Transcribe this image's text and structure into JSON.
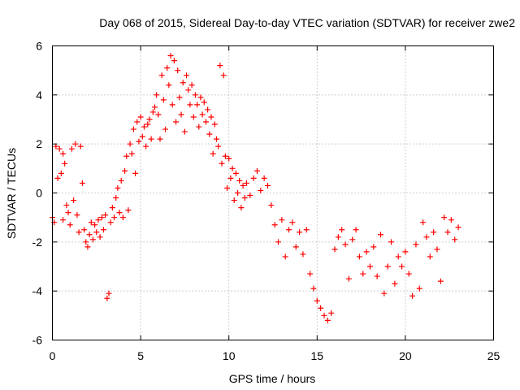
{
  "chart_data": {
    "type": "scatter",
    "title": "Day 068 of 2015, Sidereal Day-to-day VTEC variation (SDTVAR) for receiver zwe2",
    "xlabel": "GPS time / hours",
    "ylabel": "SDTVAR / TECUs",
    "xlim": [
      0,
      25
    ],
    "ylim": [
      -6,
      6
    ],
    "xticks": [
      "0",
      "5",
      "10",
      "15",
      "20",
      "25"
    ],
    "yticks": [
      "-6",
      "-4",
      "-2",
      "0",
      "2",
      "4",
      "6"
    ],
    "grid": true,
    "marker": "plus",
    "series": [
      {
        "name": "SDTVAR",
        "color": "#ff0000",
        "points": [
          [
            0.0,
            -1.0
          ],
          [
            0.1,
            -1.2
          ],
          [
            0.2,
            1.9
          ],
          [
            0.3,
            0.6
          ],
          [
            0.4,
            1.8
          ],
          [
            0.5,
            0.8
          ],
          [
            0.6,
            1.6
          ],
          [
            0.6,
            -1.1
          ],
          [
            0.7,
            1.2
          ],
          [
            0.8,
            -0.5
          ],
          [
            0.9,
            -0.8
          ],
          [
            1.0,
            -1.3
          ],
          [
            1.1,
            1.8
          ],
          [
            1.2,
            -0.3
          ],
          [
            1.3,
            2.0
          ],
          [
            1.4,
            -0.9
          ],
          [
            1.5,
            -1.6
          ],
          [
            1.6,
            1.9
          ],
          [
            1.7,
            0.4
          ],
          [
            1.8,
            -1.5
          ],
          [
            1.9,
            -2.0
          ],
          [
            2.0,
            -2.2
          ],
          [
            2.1,
            -1.7
          ],
          [
            2.2,
            -1.2
          ],
          [
            2.3,
            -1.9
          ],
          [
            2.4,
            -1.3
          ],
          [
            2.5,
            -1.6
          ],
          [
            2.6,
            -1.1
          ],
          [
            2.7,
            -1.8
          ],
          [
            2.8,
            -1.0
          ],
          [
            2.9,
            -1.5
          ],
          [
            3.0,
            -0.9
          ],
          [
            3.1,
            -4.3
          ],
          [
            3.2,
            -4.1
          ],
          [
            3.3,
            -1.2
          ],
          [
            3.4,
            -0.6
          ],
          [
            3.5,
            -1.0
          ],
          [
            3.6,
            -0.2
          ],
          [
            3.7,
            0.2
          ],
          [
            3.8,
            -0.8
          ],
          [
            3.9,
            0.5
          ],
          [
            4.0,
            -1.0
          ],
          [
            4.1,
            0.9
          ],
          [
            4.2,
            1.5
          ],
          [
            4.3,
            -0.7
          ],
          [
            4.4,
            2.0
          ],
          [
            4.5,
            1.6
          ],
          [
            4.6,
            2.6
          ],
          [
            4.7,
            0.8
          ],
          [
            4.8,
            2.9
          ],
          [
            4.9,
            2.1
          ],
          [
            5.0,
            3.1
          ],
          [
            5.1,
            2.3
          ],
          [
            5.2,
            2.7
          ],
          [
            5.3,
            1.9
          ],
          [
            5.4,
            2.8
          ],
          [
            5.5,
            3.0
          ],
          [
            5.6,
            2.2
          ],
          [
            5.7,
            3.3
          ],
          [
            5.8,
            3.5
          ],
          [
            5.9,
            4.0
          ],
          [
            6.0,
            3.2
          ],
          [
            6.1,
            2.2
          ],
          [
            6.2,
            4.8
          ],
          [
            6.3,
            3.8
          ],
          [
            6.4,
            2.6
          ],
          [
            6.5,
            5.1
          ],
          [
            6.6,
            4.4
          ],
          [
            6.7,
            5.6
          ],
          [
            6.8,
            3.6
          ],
          [
            6.9,
            5.4
          ],
          [
            7.0,
            2.9
          ],
          [
            7.1,
            5.0
          ],
          [
            7.2,
            3.9
          ],
          [
            7.3,
            3.2
          ],
          [
            7.4,
            4.5
          ],
          [
            7.5,
            2.5
          ],
          [
            7.6,
            4.8
          ],
          [
            7.7,
            4.2
          ],
          [
            7.8,
            3.6
          ],
          [
            7.9,
            4.4
          ],
          [
            8.0,
            3.1
          ],
          [
            8.1,
            4.0
          ],
          [
            8.2,
            3.6
          ],
          [
            8.3,
            2.7
          ],
          [
            8.4,
            3.9
          ],
          [
            8.5,
            3.2
          ],
          [
            8.6,
            3.7
          ],
          [
            8.7,
            2.9
          ],
          [
            8.8,
            3.4
          ],
          [
            8.9,
            2.4
          ],
          [
            9.0,
            3.1
          ],
          [
            9.1,
            1.6
          ],
          [
            9.2,
            2.8
          ],
          [
            9.3,
            2.2
          ],
          [
            9.4,
            1.9
          ],
          [
            9.5,
            5.2
          ],
          [
            9.6,
            1.2
          ],
          [
            9.7,
            4.8
          ],
          [
            9.8,
            1.5
          ],
          [
            9.9,
            0.2
          ],
          [
            10.0,
            1.4
          ],
          [
            10.1,
            0.6
          ],
          [
            10.2,
            1.0
          ],
          [
            10.3,
            -0.3
          ],
          [
            10.4,
            0.8
          ],
          [
            10.5,
            0.0
          ],
          [
            10.6,
            0.5
          ],
          [
            10.7,
            -0.6
          ],
          [
            10.8,
            0.3
          ],
          [
            10.9,
            -0.2
          ],
          [
            11.0,
            0.4
          ],
          [
            11.2,
            -0.1
          ],
          [
            11.4,
            0.6
          ],
          [
            11.6,
            0.9
          ],
          [
            11.8,
            0.1
          ],
          [
            12.0,
            0.6
          ],
          [
            12.2,
            0.3
          ],
          [
            12.4,
            -0.5
          ],
          [
            12.6,
            -1.3
          ],
          [
            12.8,
            -2.0
          ],
          [
            13.0,
            -1.1
          ],
          [
            13.2,
            -2.6
          ],
          [
            13.4,
            -1.5
          ],
          [
            13.6,
            -1.2
          ],
          [
            13.8,
            -2.2
          ],
          [
            14.0,
            -1.6
          ],
          [
            14.2,
            -2.5
          ],
          [
            14.4,
            -1.5
          ],
          [
            14.6,
            -3.3
          ],
          [
            14.8,
            -3.9
          ],
          [
            15.0,
            -4.4
          ],
          [
            15.2,
            -4.7
          ],
          [
            15.4,
            -5.0
          ],
          [
            15.6,
            -5.2
          ],
          [
            15.8,
            -4.9
          ],
          [
            16.0,
            -2.3
          ],
          [
            16.2,
            -1.8
          ],
          [
            16.4,
            -1.5
          ],
          [
            16.6,
            -2.1
          ],
          [
            16.8,
            -3.5
          ],
          [
            17.0,
            -1.9
          ],
          [
            17.2,
            -1.5
          ],
          [
            17.4,
            -2.6
          ],
          [
            17.6,
            -3.3
          ],
          [
            17.8,
            -2.4
          ],
          [
            18.0,
            -3.0
          ],
          [
            18.2,
            -2.2
          ],
          [
            18.4,
            -3.4
          ],
          [
            18.6,
            -1.7
          ],
          [
            18.8,
            -4.1
          ],
          [
            19.0,
            -3.0
          ],
          [
            19.2,
            -2.0
          ],
          [
            19.4,
            -3.7
          ],
          [
            19.6,
            -2.6
          ],
          [
            19.8,
            -3.0
          ],
          [
            20.0,
            -2.4
          ],
          [
            20.2,
            -3.3
          ],
          [
            20.4,
            -4.2
          ],
          [
            20.6,
            -2.1
          ],
          [
            20.8,
            -3.9
          ],
          [
            21.0,
            -1.2
          ],
          [
            21.2,
            -1.8
          ],
          [
            21.4,
            -2.6
          ],
          [
            21.6,
            -1.6
          ],
          [
            21.8,
            -2.3
          ],
          [
            22.0,
            -3.6
          ],
          [
            22.2,
            -1.0
          ],
          [
            22.4,
            -1.6
          ],
          [
            22.6,
            -1.1
          ],
          [
            22.8,
            -1.9
          ],
          [
            23.0,
            -1.4
          ]
        ]
      }
    ]
  }
}
